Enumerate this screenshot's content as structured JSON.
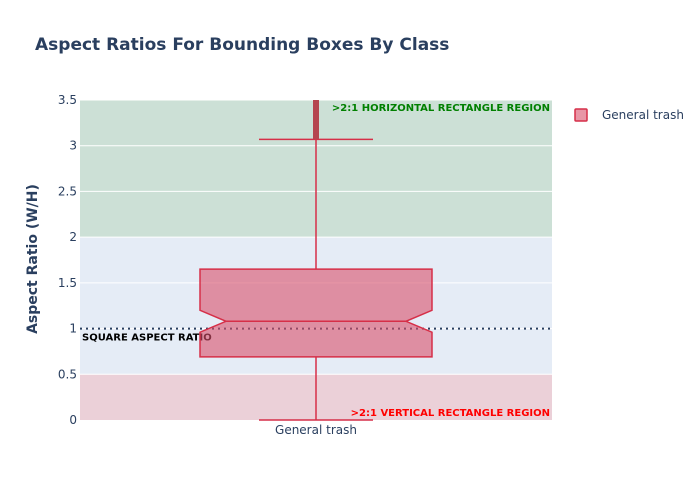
{
  "chart_data": {
    "type": "box",
    "title": "Aspect Ratios For Bounding Boxes By Class",
    "xlabel": "",
    "ylabel": "Aspect Ratio (W/H)",
    "ylim": [
      0,
      3.5
    ],
    "yticks": [
      "0",
      "0.5",
      "1",
      "1.5",
      "2",
      "2.5",
      "3",
      "3.5"
    ],
    "categories": [
      "General trash"
    ],
    "series": [
      {
        "name": "General trash",
        "color": "#d9506b",
        "box": {
          "min": 0.0,
          "q1": 0.69,
          "median": 1.08,
          "q3": 1.65,
          "upper_fence": 3.07,
          "max_outlier_range": [
            3.07,
            3.5
          ]
        }
      }
    ],
    "regions": [
      {
        "label": ">2:1 HORIZONTAL RECTANGLE REGION",
        "from": 2.0,
        "to": 3.5,
        "color": "#cce0d6",
        "label_color": "#008000"
      },
      {
        "label": ">2:1 VERTICAL RECTANGLE REGION",
        "from": 0.0,
        "to": 0.5,
        "color": "#ebd0d8",
        "label_color": "#ff0000"
      }
    ],
    "reference_line": {
      "label": "SQUARE ASPECT RATIO",
      "y": 1.0
    },
    "legend": {
      "placement": "top-right",
      "entries": [
        "General trash"
      ]
    },
    "grid": true
  }
}
